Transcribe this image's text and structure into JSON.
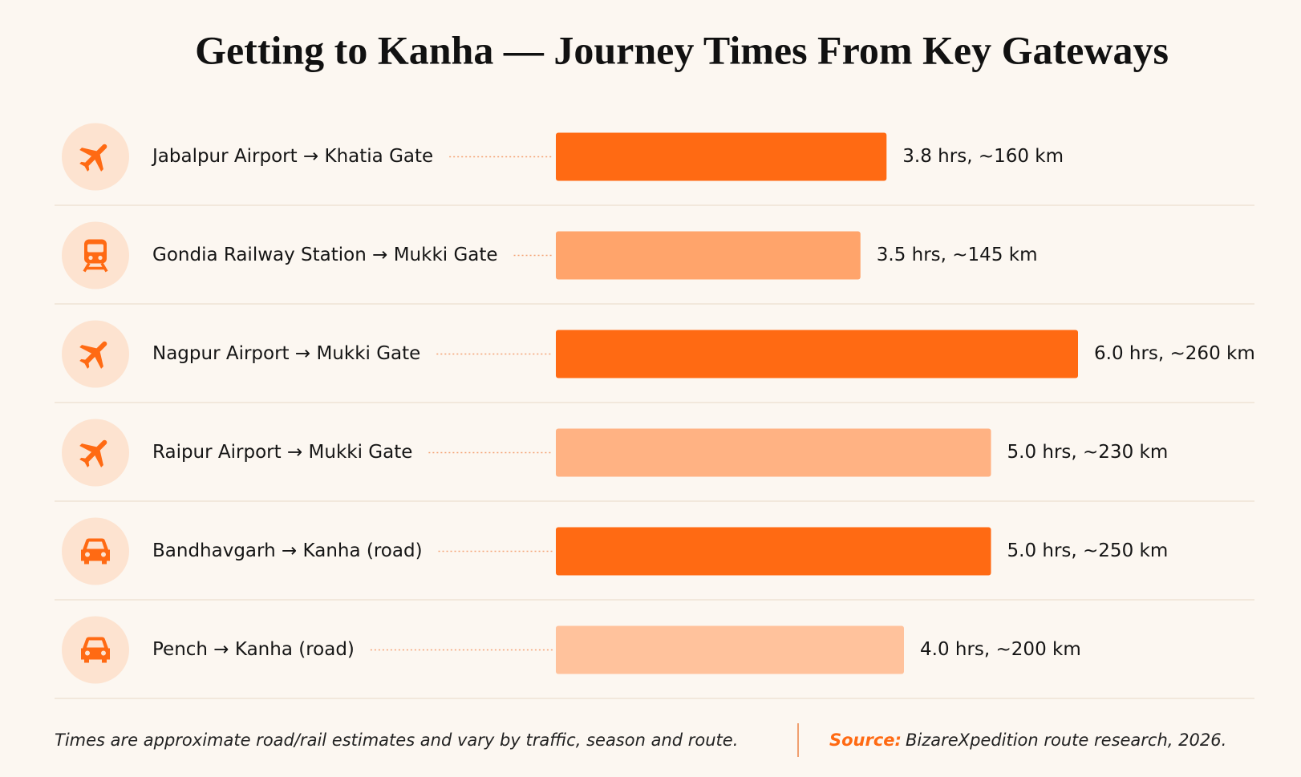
{
  "chart_data": {
    "type": "bar",
    "orientation": "horizontal",
    "title": "Getting to Kanha — Journey Times From Key Gateways",
    "categories": [
      "Jabalpur Airport → Khatia Gate",
      "Gondia Railway Station → Mukki Gate",
      "Nagpur Airport → Mukki Gate",
      "Raipur Airport → Mukki Gate",
      "Bandhavgarh → Kanha (road)",
      "Pench → Kanha (road)"
    ],
    "values": [
      3.8,
      3.5,
      6.0,
      5.0,
      5.0,
      4.0
    ],
    "value_labels": [
      "3.8 hrs, ~160 km",
      "3.5 hrs, ~145 km",
      "6.0 hrs, ~260 km",
      "5.0 hrs, ~230 km",
      "5.0 hrs, ~250 km",
      "4.0 hrs, ~200 km"
    ],
    "colors": [
      "#ff6a13",
      "#ffa46b",
      "#ff6a13",
      "#ffb283",
      "#ff6a13",
      "#ffc29c"
    ],
    "icons": [
      "plane",
      "train",
      "plane",
      "plane",
      "car",
      "car"
    ],
    "note": "Times are approximate road/rail estimates and vary by traffic, season and route.",
    "source_label": "Source:",
    "source": "BizareXpedition route research, 2026."
  }
}
